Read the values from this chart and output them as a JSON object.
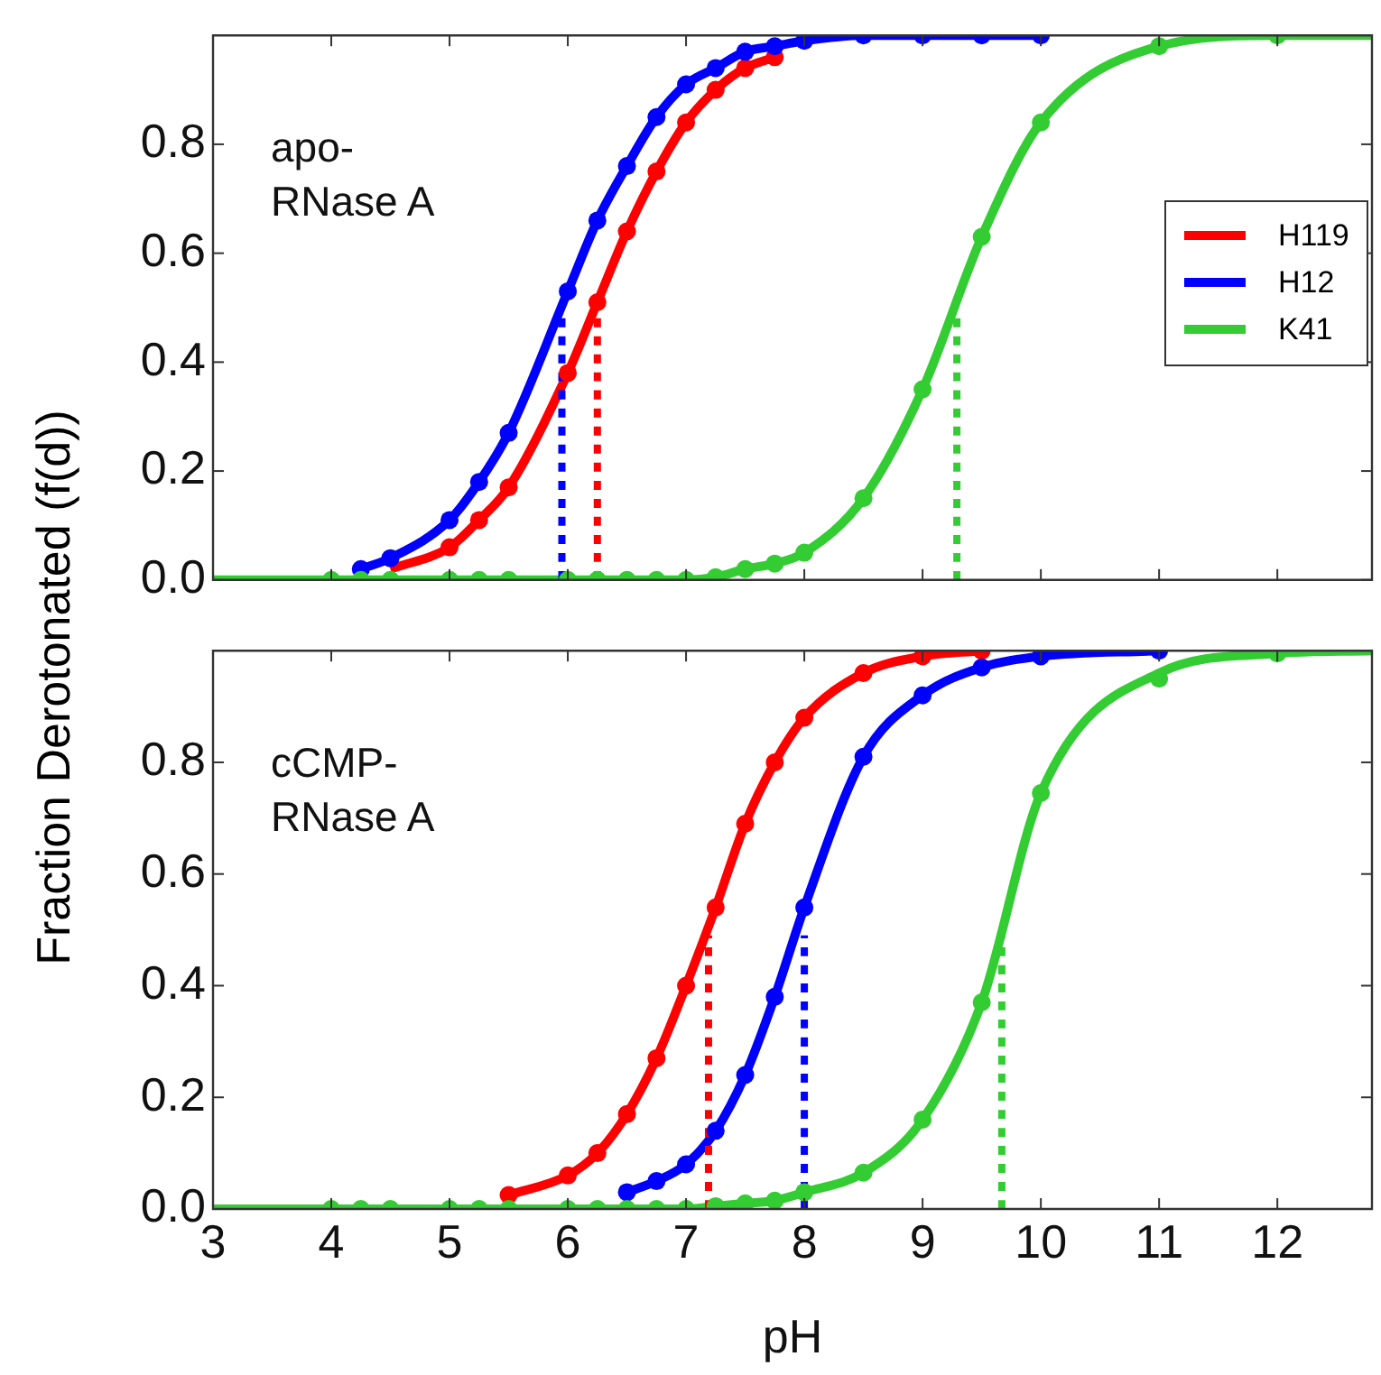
{
  "chart_data": [
    {
      "type": "line",
      "ylabel": "Fraction Derotonated (f(d))",
      "annotations": [
        "apo-\nRNase A"
      ],
      "xlim": [
        3,
        12.8
      ],
      "xticks": [
        {
          "value": 3,
          "label": null
        },
        {
          "value": 4,
          "label": null
        },
        {
          "value": 5,
          "label": null
        },
        {
          "value": 6,
          "label": null
        },
        {
          "value": 7,
          "label": null
        },
        {
          "value": 8,
          "label": null
        },
        {
          "value": 9,
          "label": null
        },
        {
          "value": 10,
          "label": null
        },
        {
          "value": 11,
          "label": null
        },
        {
          "value": 12,
          "label": null
        }
      ],
      "ylim": [
        0,
        1
      ],
      "yticks": [
        {
          "value": 0,
          "label": "0.0"
        },
        {
          "value": 0.2,
          "label": "0.2"
        },
        {
          "value": 0.4,
          "label": "0.4"
        },
        {
          "value": 0.6,
          "label": "0.6"
        },
        {
          "value": 0.8,
          "label": "0.8"
        }
      ],
      "tick_labels": "y",
      "grid": false,
      "legend": "right",
      "series": [
        {
          "name": "H119",
          "type": "line",
          "marker": "none",
          "color": "#ff0000",
          "x": [
            4.5,
            5,
            5.25,
            5.5,
            6,
            6.25,
            6.5,
            6.75,
            7,
            7.25,
            7.5,
            7.75
          ],
          "values": [
            0.02,
            0.06,
            0.11,
            0.17,
            0.38,
            0.51,
            0.64,
            0.75,
            0.84,
            0.9,
            0.94,
            0.96
          ]
        },
        {
          "name": "H12",
          "type": "line",
          "marker": "none",
          "color": "#0000ff",
          "x": [
            4.25,
            4.5,
            5,
            5.25,
            5.5,
            6,
            6.25,
            6.5,
            6.75,
            7,
            7.25,
            7.5,
            7.75,
            8,
            8.5,
            9,
            9.5,
            10
          ],
          "values": [
            0.02,
            0.04,
            0.11,
            0.18,
            0.27,
            0.53,
            0.66,
            0.76,
            0.85,
            0.91,
            0.94,
            0.97,
            0.98,
            0.99,
            1,
            1,
            1,
            1
          ]
        },
        {
          "name": "K41",
          "type": "line",
          "marker": "none",
          "color": "#33cc33",
          "x": [
            3,
            4,
            4.25,
            4.5,
            5,
            5.25,
            5.5,
            6,
            6.25,
            6.5,
            6.75,
            7,
            7.25,
            7.5,
            7.75,
            8,
            8.5,
            9,
            9.5,
            10,
            11,
            12,
            12.8
          ],
          "values": [
            0,
            0,
            0,
            0,
            0,
            0,
            0,
            0,
            0,
            0,
            0,
            0,
            0.005,
            0.02,
            0.03,
            0.05,
            0.15,
            0.35,
            0.63,
            0.84,
            0.98,
            1,
            1
          ]
        },
        {
          "type": "scatter",
          "marker": "circle",
          "color": "#ff0000",
          "x": [
            5,
            5.25,
            5.5,
            6,
            6.25,
            6.5,
            6.75,
            7,
            7.25,
            7.5,
            7.75
          ],
          "values": [
            0.06,
            0.11,
            0.17,
            0.38,
            0.51,
            0.64,
            0.75,
            0.84,
            0.9,
            0.94,
            0.96
          ]
        },
        {
          "type": "scatter",
          "marker": "circle",
          "color": "#0000ff",
          "x": [
            4.25,
            4.5,
            5,
            5.25,
            5.5,
            6,
            6.25,
            6.5,
            6.75,
            7,
            7.25,
            7.5,
            7.75,
            8,
            8.5,
            9,
            9.5,
            10
          ],
          "values": [
            0.02,
            0.04,
            0.11,
            0.18,
            0.27,
            0.53,
            0.66,
            0.76,
            0.85,
            0.91,
            0.94,
            0.97,
            0.98,
            0.99,
            1,
            1,
            1,
            1
          ]
        },
        {
          "type": "scatter",
          "marker": "circle",
          "color": "#33cc33",
          "x": [
            4,
            4.25,
            4.5,
            5,
            5.25,
            5.5,
            6,
            6.25,
            6.5,
            6.75,
            7,
            7.25,
            7.5,
            7.75,
            8,
            8.5,
            9,
            9.5,
            10,
            11,
            12
          ],
          "values": [
            0,
            0,
            0,
            0,
            0,
            0,
            0,
            0,
            0,
            0,
            0,
            0.005,
            0.02,
            0.03,
            0.05,
            0.15,
            0.35,
            0.63,
            0.84,
            0.98,
            1
          ]
        },
        {
          "type": "line",
          "marker": "none",
          "line_style": "dotted",
          "color": "#ff0000",
          "x": [
            6.25,
            6.25
          ],
          "values": [
            0,
            0.49
          ]
        },
        {
          "type": "line",
          "marker": "none",
          "line_style": "dotted",
          "color": "#0000ff",
          "x": [
            5.95,
            5.95
          ],
          "values": [
            0,
            0.49
          ]
        },
        {
          "type": "line",
          "marker": "none",
          "line_style": "dotted",
          "color": "#33cc33",
          "x": [
            9.29,
            9.29
          ],
          "values": [
            0,
            0.49
          ]
        }
      ]
    },
    {
      "type": "line",
      "xlabel": "pH",
      "annotations": [
        "cCMP-\nRNase A"
      ],
      "xlim": [
        3,
        12.8
      ],
      "xticks": [
        3,
        4,
        5,
        6,
        7,
        8,
        9,
        10,
        11,
        12
      ],
      "ylim": [
        0,
        1
      ],
      "yticks": [
        {
          "value": 0,
          "label": "0.0"
        },
        {
          "value": 0.2,
          "label": "0.2"
        },
        {
          "value": 0.4,
          "label": "0.4"
        },
        {
          "value": 0.6,
          "label": "0.6"
        },
        {
          "value": 0.8,
          "label": "0.8"
        }
      ],
      "grid": false,
      "series": [
        {
          "type": "line",
          "marker": "none",
          "color": "#ff0000",
          "x": [
            5.5,
            6,
            6.25,
            6.5,
            6.75,
            7,
            7.25,
            7.5,
            7.75,
            8,
            8.5,
            9,
            9.5
          ],
          "values": [
            0.025,
            0.06,
            0.1,
            0.17,
            0.27,
            0.4,
            0.54,
            0.69,
            0.8,
            0.88,
            0.96,
            0.99,
            1
          ]
        },
        {
          "type": "line",
          "marker": "none",
          "color": "#0000ff",
          "x": [
            6.5,
            6.75,
            7,
            7.25,
            7.5,
            7.75,
            8,
            8.5,
            9,
            9.5,
            10,
            11
          ],
          "values": [
            0.03,
            0.05,
            0.08,
            0.14,
            0.24,
            0.38,
            0.54,
            0.81,
            0.92,
            0.97,
            0.99,
            1
          ]
        },
        {
          "type": "line",
          "marker": "none",
          "color": "#33cc33",
          "x": [
            3,
            4,
            4.25,
            4.5,
            5,
            5.25,
            5.5,
            6,
            6.25,
            6.5,
            6.75,
            7,
            7.25,
            7.5,
            7.75,
            8,
            8.5,
            9,
            9.5,
            10,
            11,
            12,
            12.8
          ],
          "values": [
            0,
            0,
            0,
            0,
            0,
            0,
            0,
            0,
            0,
            0,
            0,
            0,
            0.005,
            0.01,
            0.015,
            0.03,
            0.065,
            0.16,
            0.37,
            0.745,
            0.96,
            0.995,
            1
          ]
        },
        {
          "type": "scatter",
          "marker": "circle",
          "color": "#ff0000",
          "x": [
            5.5,
            6,
            6.25,
            6.5,
            6.75,
            7,
            7.25,
            7.5,
            7.75,
            8,
            8.5,
            9,
            9.5
          ],
          "values": [
            0.025,
            0.06,
            0.1,
            0.17,
            0.27,
            0.4,
            0.54,
            0.69,
            0.8,
            0.88,
            0.96,
            0.99,
            1
          ]
        },
        {
          "type": "scatter",
          "marker": "circle",
          "color": "#0000ff",
          "x": [
            6.5,
            6.75,
            7,
            7.25,
            7.5,
            7.75,
            8,
            8.5,
            9,
            9.5,
            10,
            11
          ],
          "values": [
            0.03,
            0.05,
            0.08,
            0.14,
            0.24,
            0.38,
            0.54,
            0.81,
            0.92,
            0.97,
            0.99,
            1
          ]
        },
        {
          "type": "scatter",
          "marker": "circle",
          "color": "#33cc33",
          "x": [
            4,
            4.25,
            4.5,
            5,
            5.25,
            5.5,
            6,
            6.25,
            6.5,
            6.75,
            7,
            7.25,
            7.5,
            7.75,
            8,
            8.5,
            9,
            9.5,
            10,
            11,
            12
          ],
          "values": [
            0,
            0,
            0,
            0,
            0,
            0,
            0,
            0,
            0,
            0,
            0,
            0.005,
            0.01,
            0.015,
            0.03,
            0.065,
            0.16,
            0.37,
            0.745,
            0.95,
            0.995
          ]
        },
        {
          "type": "line",
          "marker": "none",
          "line_style": "dotted",
          "color": "#ff0000",
          "x": [
            7.19,
            7.19
          ],
          "values": [
            0,
            0.49
          ]
        },
        {
          "type": "line",
          "marker": "none",
          "line_style": "dotted",
          "color": "#0000ff",
          "x": [
            8,
            8
          ],
          "values": [
            0,
            0.49
          ]
        },
        {
          "type": "line",
          "marker": "none",
          "line_style": "dotted",
          "color": "#33cc33",
          "x": [
            9.67,
            9.67
          ],
          "values": [
            0,
            0.49
          ]
        }
      ]
    }
  ]
}
